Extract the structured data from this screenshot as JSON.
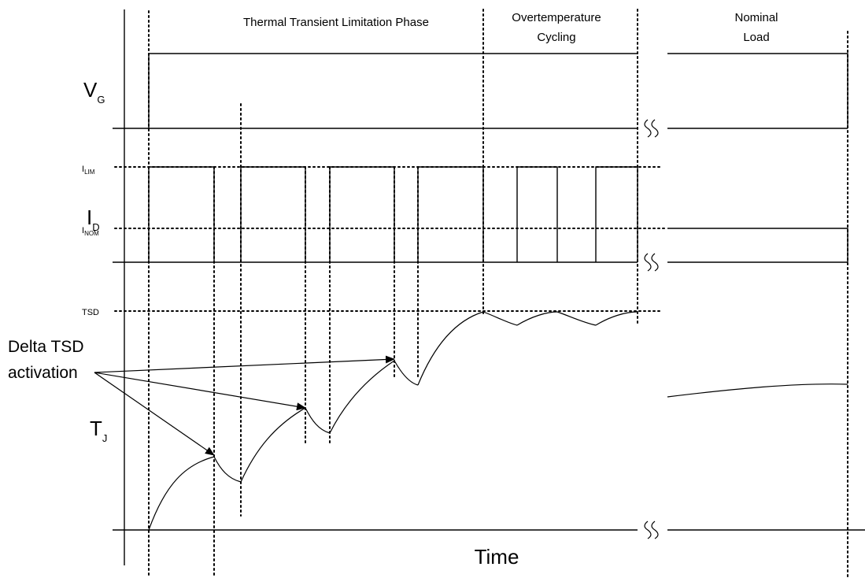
{
  "phases": {
    "thermal_transient": "Thermal Transient  Limitation Phase",
    "overtemp_line1": "Overtemperature",
    "overtemp_line2": "Cycling",
    "nominal_line1": "Nominal",
    "nominal_line2": "Load"
  },
  "signals": {
    "vg": {
      "main": "V",
      "sub": "G"
    },
    "id": {
      "main": "I",
      "sub": "D"
    },
    "tj": {
      "main": "T",
      "sub": "J"
    }
  },
  "levels": {
    "ilim": {
      "main": "I",
      "sub": "LIM"
    },
    "inom": {
      "main": "I",
      "sub": "NOM"
    },
    "tsd": "TSD"
  },
  "annotation": {
    "line1": "Delta TSD",
    "line2": "activation"
  },
  "x_axis_label": "Time"
}
